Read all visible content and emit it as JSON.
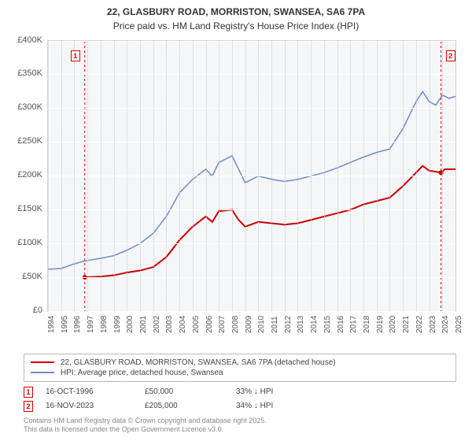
{
  "title_line1": "22, GLASBURY ROAD, MORRISTON, SWANSEA, SA6 7PA",
  "title_line2": "Price paid vs. HM Land Registry's House Price Index (HPI)",
  "chart": {
    "type": "line",
    "background_color": "#f5f6f8",
    "grid_color": "#ffffff",
    "border_color": "#d0d3d8",
    "x_years": [
      "1994",
      "1995",
      "1996",
      "1997",
      "1998",
      "1999",
      "2000",
      "2001",
      "2002",
      "2003",
      "2004",
      "2005",
      "2006",
      "2007",
      "2008",
      "2009",
      "2010",
      "2011",
      "2012",
      "2013",
      "2014",
      "2015",
      "2016",
      "2017",
      "2018",
      "2019",
      "2020",
      "2021",
      "2022",
      "2023",
      "2024",
      "2025"
    ],
    "ylim": [
      0,
      400000
    ],
    "y_ticks": [
      0,
      50000,
      100000,
      150000,
      200000,
      250000,
      300000,
      350000,
      400000
    ],
    "y_tick_labels": [
      "£0",
      "£50K",
      "£100K",
      "£150K",
      "£200K",
      "£250K",
      "£300K",
      "£350K",
      "£400K"
    ],
    "series": [
      {
        "name": "price_paid",
        "color": "#cc0000",
        "width": 2,
        "points": [
          [
            1996.8,
            50000
          ],
          [
            1997,
            50200
          ],
          [
            1998,
            51000
          ],
          [
            1999,
            53000
          ],
          [
            2000,
            57000
          ],
          [
            2001,
            60000
          ],
          [
            2002,
            65000
          ],
          [
            2003,
            80000
          ],
          [
            2004,
            105000
          ],
          [
            2005,
            125000
          ],
          [
            2006,
            140000
          ],
          [
            2006.5,
            132000
          ],
          [
            2007,
            148000
          ],
          [
            2008,
            150000
          ],
          [
            2008.5,
            135000
          ],
          [
            2009,
            125000
          ],
          [
            2010,
            132000
          ],
          [
            2011,
            130000
          ],
          [
            2012,
            128000
          ],
          [
            2013,
            130000
          ],
          [
            2014,
            135000
          ],
          [
            2015,
            140000
          ],
          [
            2016,
            145000
          ],
          [
            2017,
            150000
          ],
          [
            2018,
            158000
          ],
          [
            2019,
            163000
          ],
          [
            2020,
            168000
          ],
          [
            2021,
            185000
          ],
          [
            2022,
            205000
          ],
          [
            2022.5,
            215000
          ],
          [
            2023,
            208000
          ],
          [
            2023.9,
            205000
          ],
          [
            2024.2,
            210000
          ],
          [
            2025,
            210000
          ]
        ]
      },
      {
        "name": "hpi",
        "color": "#6f8cc4",
        "width": 1.5,
        "points": [
          [
            1994,
            62000
          ],
          [
            1995,
            63000
          ],
          [
            1996,
            70000
          ],
          [
            1997,
            75000
          ],
          [
            1998,
            78000
          ],
          [
            1999,
            82000
          ],
          [
            2000,
            90000
          ],
          [
            2001,
            100000
          ],
          [
            2002,
            115000
          ],
          [
            2003,
            140000
          ],
          [
            2004,
            175000
          ],
          [
            2005,
            195000
          ],
          [
            2006,
            210000
          ],
          [
            2006.5,
            200000
          ],
          [
            2007,
            220000
          ],
          [
            2008,
            230000
          ],
          [
            2008.5,
            210000
          ],
          [
            2009,
            190000
          ],
          [
            2010,
            200000
          ],
          [
            2011,
            195000
          ],
          [
            2012,
            192000
          ],
          [
            2013,
            195000
          ],
          [
            2014,
            200000
          ],
          [
            2015,
            205000
          ],
          [
            2016,
            212000
          ],
          [
            2017,
            220000
          ],
          [
            2018,
            228000
          ],
          [
            2019,
            235000
          ],
          [
            2020,
            240000
          ],
          [
            2021,
            270000
          ],
          [
            2022,
            310000
          ],
          [
            2022.5,
            325000
          ],
          [
            2023,
            310000
          ],
          [
            2023.5,
            305000
          ],
          [
            2024,
            320000
          ],
          [
            2024.5,
            315000
          ],
          [
            2025,
            318000
          ]
        ]
      }
    ],
    "markers": [
      {
        "label": "1",
        "x": 1996.8,
        "y": 50000,
        "color": "#cc0000"
      },
      {
        "label": "2",
        "x": 2023.9,
        "y": 205000,
        "color": "#cc0000"
      }
    ]
  },
  "legend": {
    "items": [
      {
        "color": "#cc0000",
        "label": "22, GLASBURY ROAD, MORRISTON, SWANSEA, SA6 7PA (detached house)"
      },
      {
        "color": "#6f8cc4",
        "label": "HPI: Average price, detached house, Swansea"
      }
    ]
  },
  "data_rows": [
    {
      "marker": "1",
      "date": "16-OCT-1996",
      "price": "£50,000",
      "hpi": "33% ↓ HPI"
    },
    {
      "marker": "2",
      "date": "16-NOV-2023",
      "price": "£205,000",
      "hpi": "34% ↓ HPI"
    }
  ],
  "copyright_line1": "Contains HM Land Registry data © Crown copyright and database right 2025.",
  "copyright_line2": "This data is licensed under the Open Government Licence v3.0."
}
